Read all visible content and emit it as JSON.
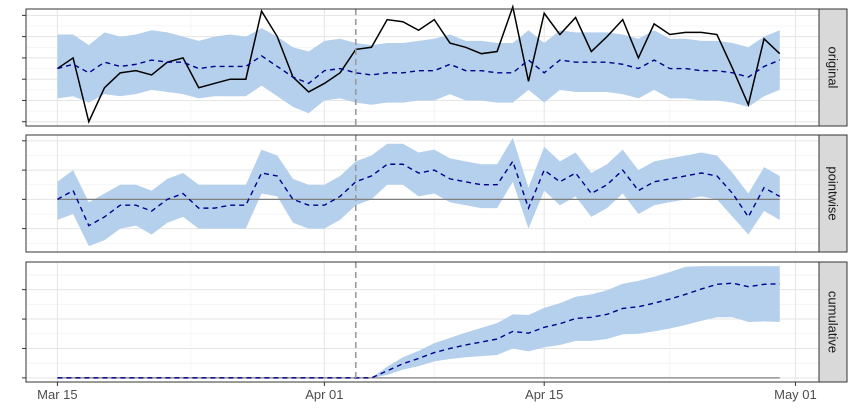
{
  "chart_data": {
    "type": "line",
    "title": "",
    "xlabel": "",
    "ylabel": "",
    "start_date": "2014-03-15",
    "intervention_date": "2014-04-03",
    "x_ticks": [
      {
        "label": "Mar 15",
        "date": "2014-03-15"
      },
      {
        "label": "Apr 01",
        "date": "2014-04-01"
      },
      {
        "label": "Apr 15",
        "date": "2014-04-15"
      },
      {
        "label": "May 01",
        "date": "2014-05-01"
      }
    ],
    "colors": {
      "band": "#b5d0ec",
      "prediction": "#00008b",
      "observed": "#000000",
      "zero_line": "#7f7f7f",
      "intervention_line": "#9a9a9a",
      "strip": "#d9d9d9"
    },
    "panels": [
      {
        "name": "original",
        "ylim": [
          -0.2,
          5.3
        ],
        "observed": [
          2.5,
          3.0,
          0.0,
          1.6,
          2.3,
          2.4,
          2.2,
          2.8,
          3.0,
          1.6,
          1.8,
          2.0,
          2.0,
          5.2,
          4.0,
          2.1,
          1.4,
          1.8,
          2.3,
          3.4,
          3.5,
          4.8,
          4.7,
          4.3,
          4.8,
          3.7,
          3.5,
          3.2,
          3.3,
          5.4,
          1.9,
          5.1,
          4.1,
          4.9,
          3.3,
          4.0,
          4.8,
          3.0,
          4.6,
          4.1,
          4.2,
          4.2,
          4.1,
          2.5,
          0.8,
          3.9,
          3.2
        ],
        "prediction": [
          2.5,
          2.7,
          2.3,
          2.8,
          2.6,
          2.7,
          2.9,
          2.8,
          2.8,
          2.5,
          2.6,
          2.6,
          2.6,
          3.1,
          2.6,
          2.1,
          1.8,
          2.4,
          2.5,
          2.3,
          2.2,
          2.3,
          2.3,
          2.4,
          2.4,
          2.7,
          2.4,
          2.4,
          2.3,
          2.3,
          2.9,
          2.3,
          2.9,
          2.8,
          2.8,
          2.8,
          2.7,
          2.5,
          2.9,
          2.5,
          2.5,
          2.4,
          2.4,
          2.3,
          2.1,
          2.6,
          2.9
        ],
        "lower": [
          1.1,
          1.2,
          0.9,
          1.3,
          1.2,
          1.3,
          1.5,
          1.4,
          1.3,
          1.1,
          1.2,
          1.2,
          1.2,
          1.7,
          1.2,
          0.7,
          0.4,
          1.0,
          1.1,
          0.9,
          0.8,
          0.9,
          0.9,
          1.0,
          1.0,
          1.3,
          1.0,
          1.0,
          0.9,
          0.9,
          1.5,
          0.9,
          1.5,
          1.4,
          1.4,
          1.4,
          1.3,
          1.1,
          1.5,
          1.1,
          1.1,
          1.0,
          1.0,
          0.9,
          0.7,
          1.2,
          1.5
        ],
        "upper": [
          4.1,
          4.1,
          3.6,
          4.2,
          4.0,
          4.1,
          4.3,
          4.2,
          4.0,
          3.8,
          4.0,
          4.1,
          4.0,
          4.4,
          4.0,
          3.5,
          3.3,
          3.8,
          3.9,
          3.7,
          3.6,
          3.7,
          3.7,
          3.8,
          3.9,
          4.1,
          3.8,
          3.8,
          3.7,
          3.7,
          4.3,
          3.7,
          4.3,
          4.2,
          4.2,
          4.2,
          4.1,
          3.9,
          4.3,
          3.9,
          3.9,
          3.8,
          3.8,
          3.7,
          3.5,
          4.0,
          4.3
        ]
      },
      {
        "name": "pointwise",
        "ylim": [
          -1.8,
          2.2
        ],
        "prediction": [
          0.0,
          0.3,
          -0.9,
          -0.6,
          -0.2,
          -0.2,
          -0.4,
          0.0,
          0.2,
          -0.3,
          -0.3,
          -0.2,
          -0.2,
          0.9,
          0.8,
          0.0,
          -0.2,
          -0.2,
          0.1,
          0.6,
          0.8,
          1.2,
          1.2,
          0.9,
          1.0,
          0.7,
          0.6,
          0.5,
          0.5,
          1.3,
          -0.3,
          1.0,
          0.6,
          0.9,
          0.2,
          0.5,
          1.0,
          0.3,
          0.6,
          0.7,
          0.8,
          0.9,
          0.8,
          0.2,
          -0.6,
          0.4,
          0.1
        ],
        "lower": [
          -0.7,
          -0.5,
          -1.6,
          -1.4,
          -1.0,
          -0.9,
          -1.2,
          -0.8,
          -0.6,
          -1.0,
          -1.0,
          -1.0,
          -1.0,
          0.2,
          0.1,
          -0.8,
          -1.0,
          -1.0,
          -0.7,
          -0.2,
          0.0,
          0.5,
          0.5,
          0.1,
          0.2,
          -0.1,
          -0.2,
          -0.3,
          -0.3,
          0.6,
          -1.0,
          0.3,
          -0.2,
          0.1,
          -0.6,
          -0.3,
          0.2,
          -0.5,
          -0.2,
          -0.1,
          0.0,
          0.1,
          0.0,
          -0.6,
          -1.2,
          -0.4,
          -0.7
        ],
        "upper": [
          0.6,
          1.0,
          -0.1,
          0.2,
          0.5,
          0.5,
          0.3,
          0.7,
          0.9,
          0.5,
          0.5,
          0.5,
          0.5,
          1.7,
          1.5,
          0.7,
          0.5,
          0.5,
          0.8,
          1.3,
          1.5,
          1.9,
          1.9,
          1.6,
          1.7,
          1.4,
          1.3,
          1.2,
          1.2,
          2.1,
          0.4,
          1.8,
          1.3,
          1.6,
          0.9,
          1.2,
          1.7,
          1.0,
          1.3,
          1.4,
          1.5,
          1.6,
          1.5,
          0.9,
          0.2,
          1.1,
          0.8
        ]
      },
      {
        "name": "cumulative",
        "ylim": [
          -0.7,
          19.7
        ],
        "prediction": [
          0,
          0,
          0,
          0,
          0,
          0,
          0,
          0,
          0,
          0,
          0,
          0,
          0,
          0,
          0,
          0,
          0,
          0,
          0,
          0,
          0,
          1.2,
          2.4,
          3.3,
          4.3,
          5.0,
          5.6,
          6.1,
          6.6,
          7.9,
          7.6,
          8.6,
          9.2,
          10.1,
          10.3,
          10.8,
          11.8,
          12.1,
          12.7,
          13.4,
          14.2,
          15.1,
          15.9,
          16.1,
          15.5,
          15.9,
          16.0
        ],
        "lower": [
          0,
          0,
          0,
          0,
          0,
          0,
          0,
          0,
          0,
          0,
          0,
          0,
          0,
          0,
          0,
          0,
          0,
          0,
          0,
          0,
          0,
          0.5,
          1.4,
          2.0,
          2.8,
          3.2,
          3.5,
          3.7,
          3.9,
          5.0,
          4.5,
          5.2,
          5.6,
          6.3,
          6.3,
          6.6,
          7.4,
          7.5,
          7.9,
          8.4,
          9.0,
          9.7,
          10.3,
          10.3,
          9.5,
          9.6,
          9.5
        ],
        "upper": [
          0,
          0,
          0,
          0,
          0,
          0,
          0,
          0,
          0,
          0,
          0,
          0,
          0,
          0,
          0,
          0,
          0,
          0,
          0,
          0,
          0,
          1.9,
          3.5,
          4.6,
          5.9,
          6.8,
          7.7,
          8.5,
          9.3,
          10.8,
          10.7,
          11.9,
          12.7,
          13.8,
          14.2,
          14.9,
          16.0,
          16.5,
          17.2,
          18.0,
          18.9,
          19.0,
          19.0,
          19.0,
          19.0,
          19.0,
          19.0
        ]
      }
    ],
    "grid": true,
    "legend": "none"
  }
}
